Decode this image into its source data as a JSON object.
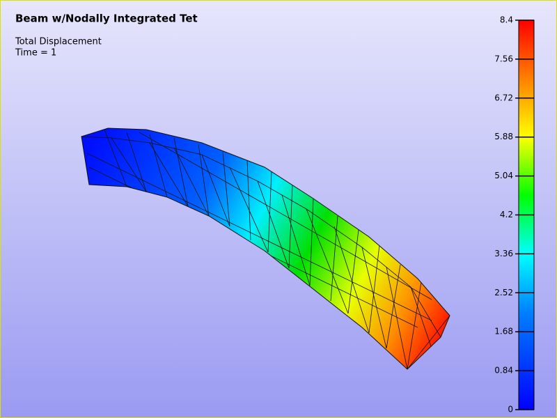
{
  "header": {
    "title": "Beam w/Nodally Integrated Tet"
  },
  "info": {
    "variable": "Total Displacement",
    "time": "Time = 1"
  },
  "colorbar": {
    "ticks": [
      "8.4",
      "7.56",
      "6.72",
      "5.88",
      "5.04",
      "4.2",
      "3.36",
      "2.52",
      "1.68",
      "0.84",
      "0"
    ]
  }
}
